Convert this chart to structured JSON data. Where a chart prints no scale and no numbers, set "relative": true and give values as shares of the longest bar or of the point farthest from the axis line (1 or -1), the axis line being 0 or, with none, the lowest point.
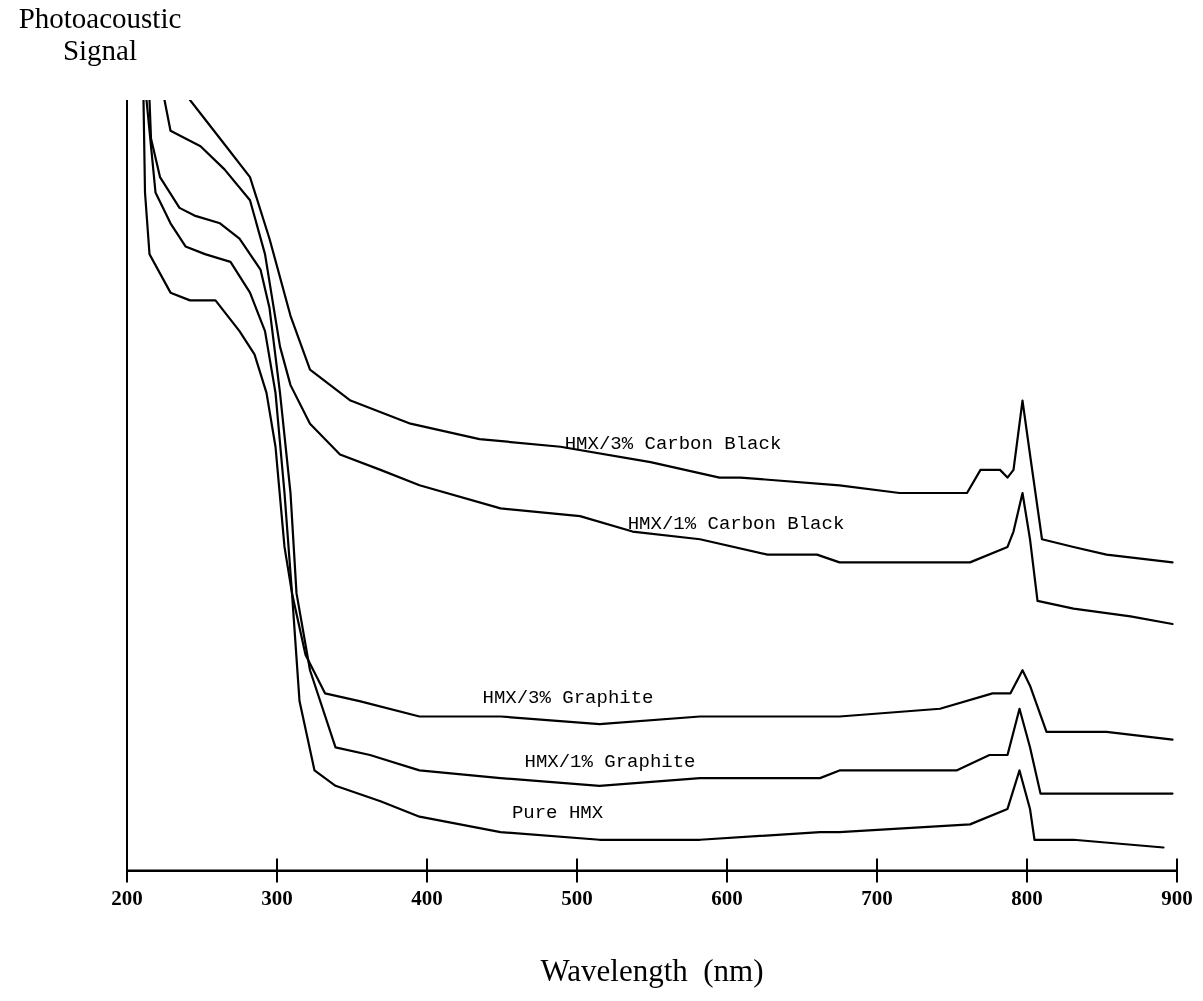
{
  "chart_data": {
    "type": "line",
    "relative": true,
    "xlabel": "Wavelength  (nm)",
    "ylabel": "Photoacoustic Signal",
    "xlim": [
      200,
      900
    ],
    "xticks": [
      200,
      300,
      400,
      500,
      600,
      700,
      800,
      900
    ],
    "grid": false,
    "legend": false,
    "marker": "none",
    "line_style": "solid",
    "series": [
      {
        "name": "HMX/3% Carbon Black",
        "color": "#000000",
        "x": [
          242,
          262,
          282,
          295,
          309,
          322,
          349,
          389,
          435,
          489,
          549,
          595,
          609,
          675,
          715,
          733,
          760,
          769,
          782,
          787,
          791,
          797,
          802,
          810,
          831,
          853,
          897
        ],
        "values": [
          1.0,
          0.95,
          0.9,
          0.82,
          0.72,
          0.65,
          0.61,
          0.58,
          0.56,
          0.55,
          0.53,
          0.51,
          0.51,
          0.5,
          0.49,
          0.49,
          0.49,
          0.52,
          0.52,
          0.51,
          0.52,
          0.61,
          0.54,
          0.43,
          0.42,
          0.41,
          0.4
        ]
      },
      {
        "name": "HMX/1% Carbon Black",
        "color": "#000000",
        "x": [
          225,
          229,
          249,
          265,
          282,
          292,
          302,
          309,
          322,
          342,
          369,
          395,
          449,
          502,
          537,
          582,
          627,
          660,
          675,
          742,
          762,
          787,
          791,
          797,
          802,
          807,
          831,
          869,
          897
        ],
        "values": [
          1.0,
          0.96,
          0.94,
          0.91,
          0.87,
          0.8,
          0.68,
          0.63,
          0.58,
          0.54,
          0.52,
          0.5,
          0.47,
          0.46,
          0.44,
          0.43,
          0.41,
          0.41,
          0.4,
          0.4,
          0.4,
          0.42,
          0.44,
          0.49,
          0.43,
          0.35,
          0.34,
          0.33,
          0.32
        ]
      },
      {
        "name": "HMX/3% Graphite",
        "color": "#000000",
        "x": [
          211,
          212,
          215,
          229,
          242,
          259,
          275,
          285,
          293,
          299,
          305,
          310,
          319,
          332,
          355,
          395,
          449,
          515,
          582,
          662,
          675,
          742,
          777,
          789,
          797,
          802,
          813,
          853,
          897
        ],
        "values": [
          1.0,
          0.88,
          0.8,
          0.75,
          0.74,
          0.74,
          0.7,
          0.67,
          0.62,
          0.55,
          0.42,
          0.36,
          0.28,
          0.23,
          0.22,
          0.2,
          0.2,
          0.19,
          0.2,
          0.2,
          0.2,
          0.21,
          0.23,
          0.23,
          0.26,
          0.24,
          0.18,
          0.18,
          0.17
        ]
      },
      {
        "name": "HMX/1% Graphite",
        "color": "#000000",
        "x": [
          215,
          216,
          222,
          235,
          245,
          262,
          275,
          289,
          295,
          302,
          309,
          313,
          322,
          339,
          362,
          395,
          449,
          515,
          582,
          662,
          675,
          753,
          775,
          787,
          795,
          802,
          809,
          853,
          897
        ],
        "values": [
          1.0,
          0.95,
          0.9,
          0.86,
          0.85,
          0.84,
          0.82,
          0.78,
          0.73,
          0.62,
          0.49,
          0.36,
          0.26,
          0.16,
          0.15,
          0.13,
          0.12,
          0.11,
          0.12,
          0.12,
          0.13,
          0.13,
          0.15,
          0.15,
          0.21,
          0.16,
          0.1,
          0.1,
          0.1
        ]
      },
      {
        "name": "Pure HMX",
        "color": "#000000",
        "x": [
          213,
          219,
          229,
          239,
          252,
          269,
          282,
          292,
          299,
          305,
          310,
          315,
          325,
          339,
          369,
          395,
          449,
          515,
          582,
          662,
          675,
          762,
          787,
          795,
          802,
          805,
          831,
          891
        ],
        "values": [
          1.0,
          0.88,
          0.84,
          0.81,
          0.8,
          0.79,
          0.75,
          0.7,
          0.62,
          0.49,
          0.36,
          0.22,
          0.13,
          0.11,
          0.09,
          0.07,
          0.05,
          0.04,
          0.04,
          0.05,
          0.05,
          0.06,
          0.08,
          0.13,
          0.08,
          0.04,
          0.04,
          0.03
        ]
      }
    ]
  }
}
